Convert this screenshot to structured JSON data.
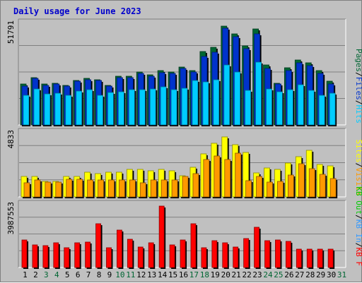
{
  "title": "Daily usage for June 2023",
  "colors": {
    "hits": "#006633",
    "files": "#0033cc",
    "pages": "#00ccff",
    "visits": "#ffff00",
    "sites": "#ff9900",
    "kbf": "#ff0000",
    "kbin": "#3399ff",
    "kbout": "#00cc00",
    "weekday_label": "#000000",
    "weekend_label": "#006633"
  },
  "chart_data": {
    "type": "bar",
    "x": [
      "1",
      "2",
      "3",
      "4",
      "5",
      "6",
      "7",
      "8",
      "9",
      "10",
      "11",
      "12",
      "13",
      "14",
      "15",
      "16",
      "17",
      "18",
      "19",
      "20",
      "21",
      "22",
      "23",
      "24",
      "25",
      "26",
      "27",
      "28",
      "29",
      "30",
      "31"
    ],
    "weekend_days": [
      "3",
      "4",
      "10",
      "11",
      "17",
      "18",
      "24",
      "25",
      "31"
    ],
    "panels": [
      {
        "name": "hits-files-pages",
        "max_label": "51791",
        "ylim": [
          0,
          51791
        ],
        "legend": [
          "Hits",
          "Files",
          "Pages"
        ],
        "series": [
          {
            "name": "Hits",
            "values": [
              21000,
              24500,
              21000,
              21500,
              20500,
              23000,
              24000,
              23500,
              20500,
              25000,
              25000,
              27500,
              26000,
              28000,
              27500,
              30000,
              28000,
              38000,
              40000,
              51000,
              47000,
              41000,
              49500,
              31000,
              21500,
              29500,
              33500,
              32000,
              28000,
              22500,
              null
            ]
          },
          {
            "name": "Files",
            "values": [
              20000,
              24000,
              20500,
              21000,
              20000,
              22500,
              23500,
              23000,
              20000,
              24500,
              24500,
              26500,
              25000,
              27000,
              26500,
              29000,
              27500,
              35500,
              37500,
              50000,
              45500,
              39500,
              47000,
              29000,
              21000,
              28000,
              32000,
              30500,
              26500,
              21000,
              null
            ]
          },
          {
            "name": "Pages",
            "values": [
              15500,
              18500,
              15900,
              16400,
              15500,
              17500,
              18200,
              15300,
              16600,
              17100,
              18100,
              18400,
              18600,
              19700,
              18100,
              18900,
              22800,
              22200,
              23300,
              31000,
              27500,
              18000,
              32400,
              18600,
              17300,
              18200,
              20800,
              17800,
              15400,
              16400,
              null
            ]
          }
        ]
      },
      {
        "name": "visits-sites",
        "max_label": "4833",
        "ylim": [
          0,
          4833
        ],
        "legend": [
          "Visits",
          "Sites"
        ],
        "series": [
          {
            "name": "Visits",
            "values": [
              1550,
              1600,
              1200,
              1200,
              1550,
              1550,
              1900,
              1800,
              1900,
              1900,
              2100,
              2100,
              2000,
              2100,
              2000,
              1650,
              2300,
              3300,
              4100,
              4600,
              4000,
              3400,
              1850,
              2200,
              2100,
              2600,
              3100,
              3600,
              2500,
              2400,
              null
            ]
          },
          {
            "name": "Sites",
            "values": [
              1100,
              1300,
              1150,
              1150,
              1350,
              1350,
              1300,
              1300,
              1300,
              1300,
              1300,
              1100,
              1300,
              1300,
              1300,
              1550,
              1800,
              2900,
              3150,
              2900,
              3350,
              1250,
              1550,
              1150,
              1200,
              1700,
              2550,
              2150,
              1750,
              1400,
              null
            ]
          }
        ]
      },
      {
        "name": "kbytes",
        "max_label": "3987553",
        "ylim": [
          0,
          3987553
        ],
        "legend": [
          "KB F",
          "KB In",
          "KB Out"
        ],
        "series": [
          {
            "name": "KB F",
            "values": [
              1800000,
              1450000,
              1400000,
              1600000,
              1300000,
              1600000,
              1650000,
              2850000,
              1300000,
              2450000,
              1850000,
              1350000,
              1600000,
              3987553,
              1450000,
              1800000,
              2850000,
              1300000,
              1750000,
              1600000,
              1350000,
              1900000,
              2600000,
              1750000,
              1800000,
              1700000,
              1200000,
              1200000,
              1200000,
              1200000,
              null
            ]
          },
          {
            "name": "KB In",
            "values": [
              0,
              0,
              0,
              0,
              0,
              0,
              0,
              0,
              0,
              0,
              0,
              0,
              0,
              0,
              0,
              0,
              0,
              0,
              0,
              0,
              0,
              0,
              0,
              0,
              0,
              0,
              0,
              0,
              0,
              0,
              null
            ]
          },
          {
            "name": "KB Out",
            "values": [
              0,
              0,
              0,
              0,
              0,
              0,
              0,
              0,
              0,
              0,
              0,
              0,
              0,
              0,
              0,
              0,
              0,
              0,
              0,
              0,
              0,
              0,
              0,
              0,
              0,
              0,
              0,
              0,
              0,
              0,
              null
            ]
          }
        ]
      }
    ]
  }
}
